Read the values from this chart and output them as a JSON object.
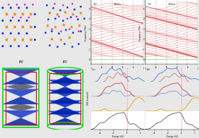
{
  "bg_color": "#e8e8e8",
  "crystal_bg": "#ffffff",
  "phonon_bg": "#ffffff",
  "dos_bg": "#ffffff",
  "fermi_bg": "#1a1a2e",
  "ru_color": "#2233cc",
  "al_color": "#ff8800",
  "b_color": "#dd00cc",
  "phonon_line_color": "#cc1111",
  "phonon_zero_color": "#00aa00",
  "fermi_blue": "#1111bb",
  "fermi_gray": "#777777",
  "green_box": "#00dd00",
  "red_box": "#dd0000",
  "dos_blue": "#3366cc",
  "dos_red": "#cc2222",
  "dos_yellow": "#ddaa00",
  "dos_dark": "#333333",
  "dos_pink_line": "#ff66aa",
  "panel_labels": [
    "(a)",
    "(b)",
    "(c)",
    "(d)"
  ],
  "k_labels_1": [
    "Γ",
    "A",
    "M",
    "K",
    "Γ"
  ],
  "k_labels_2": [
    "Γ",
    "A",
    "M",
    "K",
    "H",
    "Γ"
  ],
  "energy_range": [
    -8,
    4
  ],
  "phonon_freq_range": [
    -0.5,
    6.0
  ]
}
